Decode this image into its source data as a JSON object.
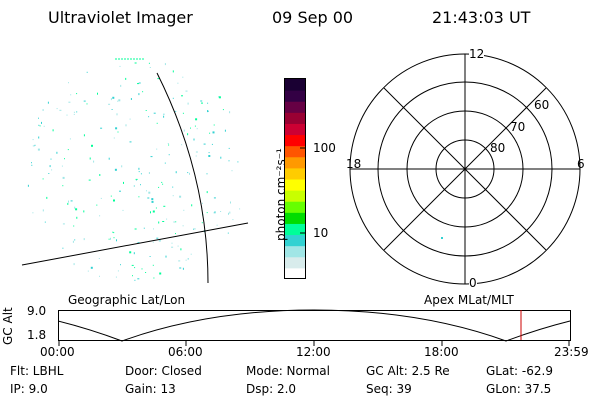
{
  "header": {
    "instrument": "Ultraviolet Imager",
    "date": "09 Sep 00",
    "time": "21:43:03 UT"
  },
  "colorbar": {
    "unit_label": "photon cm⁻²s⁻¹",
    "ticks": [
      {
        "label": "100",
        "value": 100
      },
      {
        "label": "10",
        "value": 10
      }
    ],
    "colors": [
      "#ffffff",
      "#d8ecec",
      "#a0e6e6",
      "#32d2d2",
      "#00ff99",
      "#00dd00",
      "#66ff00",
      "#c8ff00",
      "#ffff00",
      "#ffcc00",
      "#ff9900",
      "#ff5500",
      "#ff0000",
      "#cc0033",
      "#990033",
      "#660044",
      "#330044",
      "#1a0033"
    ]
  },
  "polar_plot": {
    "mlt_labels": {
      "top": "12",
      "left": "18",
      "right": "6",
      "bottom": "0"
    },
    "lat_labels": [
      "60",
      "70",
      "80"
    ]
  },
  "map_labels": {
    "left": "Geographic Lat/Lon",
    "right": "Apex MLat/MLT"
  },
  "alt_plot": {
    "axis_title": "GC Alt",
    "y_ticks": [
      "9.0",
      "1.8"
    ],
    "x_ticks": [
      "00:00",
      "06:00",
      "12:00",
      "18:00",
      "23:59"
    ],
    "marker_color": "#cc0000"
  },
  "info": {
    "flt": "Flt: LBHL",
    "ip": "IP:  9.0",
    "door": "Door: Closed",
    "gain": "Gain: 13",
    "mode": "Mode: Normal",
    "dsp": "Dsp:    2.0",
    "gcalt": "GC Alt: 2.5 Re",
    "seq": "Seq: 39",
    "glat": "GLat: -62.9",
    "glon": "GLon:  37.5"
  },
  "colors": {
    "speckle": "#32d2d2",
    "speckle_alt": "#00ff99",
    "line": "#000000"
  }
}
